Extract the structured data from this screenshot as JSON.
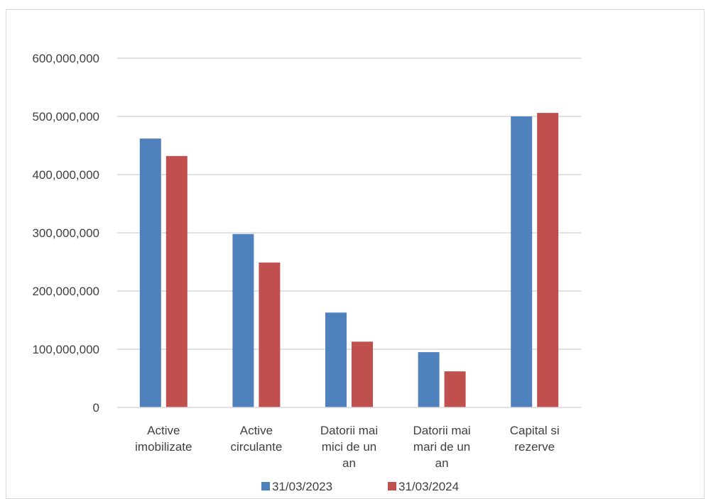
{
  "chart_data": {
    "type": "bar",
    "title": "",
    "xlabel": "",
    "ylabel": "",
    "categories": [
      [
        "Active",
        "imobilizate"
      ],
      [
        "Active",
        "circulante"
      ],
      [
        "Datorii mai",
        "mici de un",
        "an"
      ],
      [
        "Datorii mai",
        "mari de un",
        "an"
      ],
      [
        "Capital si",
        "rezerve"
      ]
    ],
    "series": [
      {
        "name": "31/03/2023",
        "color": "#4f81bd",
        "values": [
          462000000,
          298000000,
          163000000,
          95000000,
          500000000
        ]
      },
      {
        "name": "31/03/2024",
        "color": "#c0504d",
        "values": [
          432000000,
          249000000,
          113000000,
          62000000,
          506000000
        ]
      }
    ],
    "ylim": [
      0,
      600000000
    ],
    "yticks": [
      "0",
      "100,000,000",
      "200,000,000",
      "300,000,000",
      "400,000,000",
      "500,000,000",
      "600,000,000"
    ],
    "grid": true,
    "legend_position": "bottom"
  }
}
